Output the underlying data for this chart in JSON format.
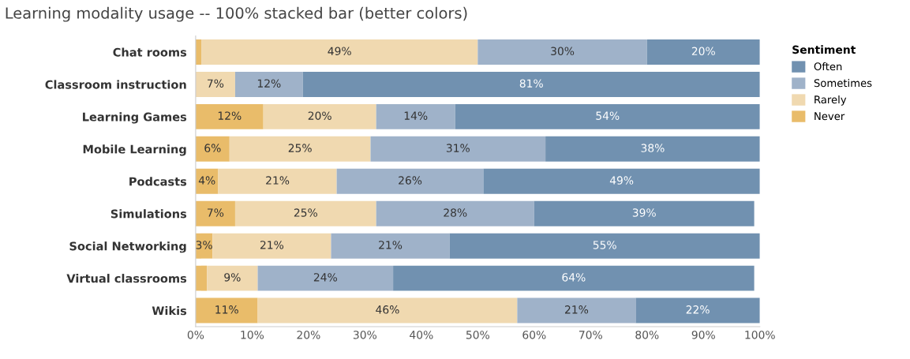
{
  "chart_data": {
    "type": "bar",
    "orientation": "horizontal",
    "stacked": true,
    "title": "Learning modality usage -- 100% stacked bar (better colors)",
    "legend_title": "Sentiment",
    "legend": "top right",
    "categories": [
      "Chat rooms",
      "Classroom instruction",
      "Learning Games",
      "Mobile Learning",
      "Podcasts",
      "Simulations",
      "Social Networking",
      "Virtual classrooms",
      "Wikis"
    ],
    "series": [
      {
        "name": "Never",
        "color": "#e9bc6a",
        "values": [
          1,
          0,
          12,
          6,
          4,
          7,
          3,
          2,
          11
        ],
        "value_labels": [
          null,
          null,
          "12%",
          "6%",
          "4%",
          "7%",
          "3%",
          null,
          "11%"
        ]
      },
      {
        "name": "Rarely",
        "color": "#f0d9b0",
        "values": [
          49,
          7,
          20,
          25,
          21,
          25,
          21,
          9,
          46
        ],
        "value_labels": [
          "49%",
          "7%",
          "20%",
          "25%",
          "21%",
          "25%",
          "21%",
          "9%",
          "46%"
        ]
      },
      {
        "name": "Sometimes",
        "color": "#9fb2c9",
        "values": [
          30,
          12,
          14,
          31,
          26,
          28,
          21,
          24,
          21
        ],
        "value_labels": [
          "30%",
          "12%",
          "14%",
          "31%",
          "26%",
          "28%",
          "21%",
          "24%",
          "21%"
        ]
      },
      {
        "name": "Often",
        "color": "#7191b0",
        "values": [
          20,
          81,
          54,
          38,
          49,
          39,
          55,
          64,
          22
        ],
        "value_labels": [
          "20%",
          "81%",
          "54%",
          "38%",
          "49%",
          "39%",
          "55%",
          "64%",
          "22%"
        ]
      }
    ],
    "xlim": [
      0,
      100
    ],
    "xticks": [
      {
        "value": 0,
        "label": "0%"
      },
      {
        "value": 10,
        "label": "10%"
      },
      {
        "value": 20,
        "label": "20%"
      },
      {
        "value": 30,
        "label": "30%"
      },
      {
        "value": 40,
        "label": "40%"
      },
      {
        "value": 50,
        "label": "50%"
      },
      {
        "value": 60,
        "label": "60%"
      },
      {
        "value": 70,
        "label": "70%"
      },
      {
        "value": 80,
        "label": "80%"
      },
      {
        "value": 90,
        "label": "90%"
      },
      {
        "value": 100,
        "label": "100%"
      }
    ],
    "grid": false
  }
}
